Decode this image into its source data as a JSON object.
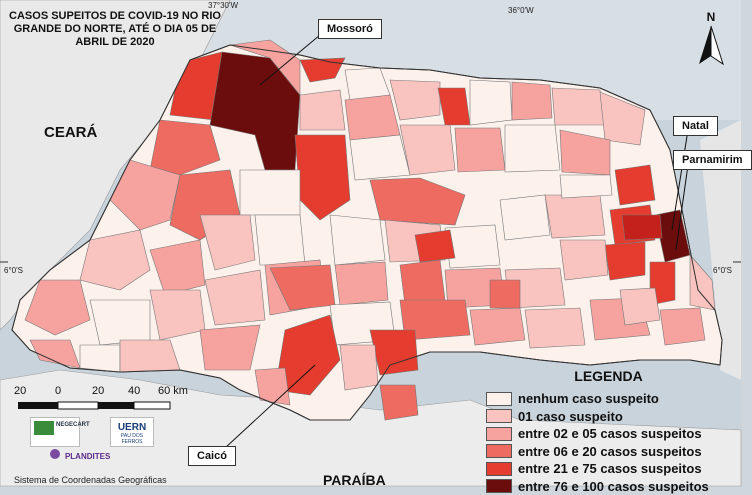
{
  "title": "CASOS SUPEITOS DE COVID-19 NO RIO GRANDE DO NORTE, ATÉ O DIA 05 DE ABRIL DE 2020",
  "coordinates": {
    "top_left": "37°30'W",
    "top_right": "36°0'W",
    "left_lat": "6°0'S",
    "right_lat": "6°0'S"
  },
  "labels": {
    "ceara": "CEARÁ",
    "paraiba": "PARAÍBA",
    "north": "N"
  },
  "callouts": {
    "mossoro": "Mossoró",
    "natal": "Natal",
    "parnamirim": "Parnamirim",
    "caico": "Caicó"
  },
  "scale": {
    "ticks": [
      "20",
      "0",
      "20",
      "40",
      "60 km"
    ]
  },
  "legend": {
    "title": "LEGENDA",
    "items": [
      {
        "label": "nenhum caso suspeito",
        "color": "#fdf1ec"
      },
      {
        "label": "01 caso suspeito",
        "color": "#f9c3c0"
      },
      {
        "label": "entre 02 e 05 casos suspeitos",
        "color": "#f6a3a0"
      },
      {
        "label": "entre 06 e 20 casos suspeitos",
        "color": "#ee6b62"
      },
      {
        "label": "entre 21 e 75 casos suspeitos",
        "color": "#e43c2f"
      },
      {
        "label": "entre 76 e 100 casos suspeitos",
        "color": "#6b0d0d"
      }
    ]
  },
  "logos": {
    "negecart": "NEGECART",
    "uern": "UERN",
    "uern_sub": "PAU DOS FERROS",
    "plandites": "PLANDITES"
  },
  "footer": "Sistema de Coordenadas Geográficas"
}
